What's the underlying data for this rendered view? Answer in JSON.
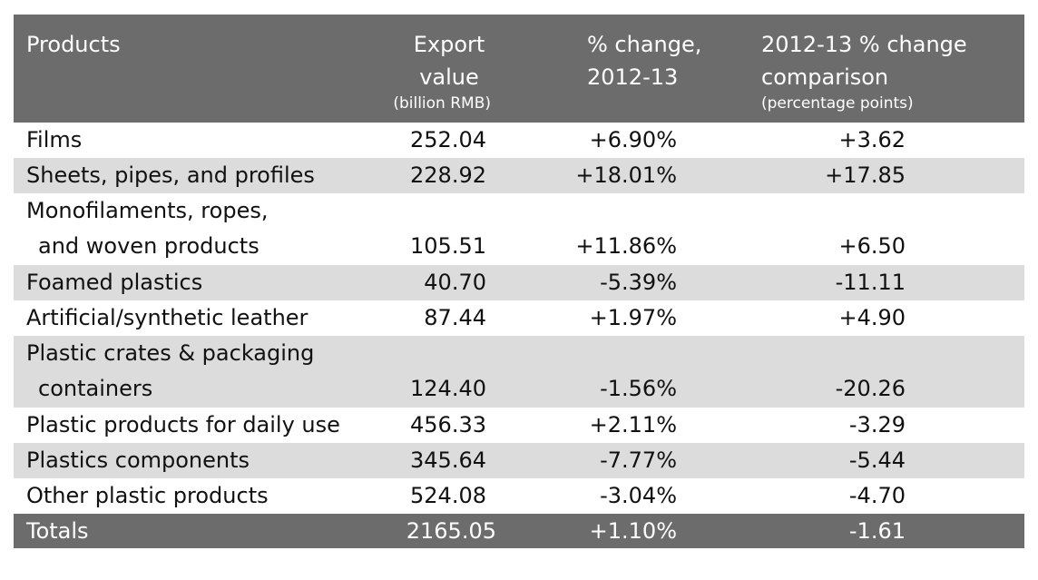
{
  "header": {
    "products": "Products",
    "export_line1": "Export",
    "export_line2": "value",
    "export_sub": "(billion RMB)",
    "pct_line1": "% change,",
    "pct_line2": "2012-13",
    "cmp_line1": "2012-13 % change",
    "cmp_line2": "comparison",
    "cmp_sub": "(percentage points)"
  },
  "rows": [
    {
      "product": "Films",
      "value": "252.04",
      "pct": "+6.90%",
      "cmp": "+3.62"
    },
    {
      "product": "Sheets, pipes, and profiles",
      "value": "228.92",
      "pct": "+18.01%",
      "cmp": "+17.85"
    },
    {
      "product": "Monofilaments, ropes,",
      "product2": "and woven products",
      "value": "105.51",
      "pct": "+11.86%",
      "cmp": "+6.50"
    },
    {
      "product": "Foamed plastics",
      "value": "40.70",
      "pct": "-5.39%",
      "cmp": "-11.11"
    },
    {
      "product": "Artificial/synthetic leather",
      "value": "87.44",
      "pct": "+1.97%",
      "cmp": "+4.90"
    },
    {
      "product": "Plastic crates & packaging",
      "product2": "containers",
      "value": "124.40",
      "pct": "-1.56%",
      "cmp": "-20.26"
    },
    {
      "product": "Plastic products for daily use",
      "value": "456.33",
      "pct": "+2.11%",
      "cmp": "-3.29"
    },
    {
      "product": "Plastics components",
      "value": "345.64",
      "pct": "-7.77%",
      "cmp": "-5.44"
    },
    {
      "product": "Other plastic products",
      "value": "524.08",
      "pct": "-3.04%",
      "cmp": "-4.70"
    }
  ],
  "totals": {
    "product": "Totals",
    "value": "2165.05",
    "pct": "+1.10%",
    "cmp": "-1.61"
  },
  "chart_data": {
    "type": "table",
    "columns": [
      "Products",
      "Export value (billion RMB)",
      "% change, 2012-13",
      "2012-13 % change comparison (percentage points)"
    ],
    "rows": [
      [
        "Films",
        252.04,
        6.9,
        3.62
      ],
      [
        "Sheets, pipes, and profiles",
        228.92,
        18.01,
        17.85
      ],
      [
        "Monofilaments, ropes, and woven products",
        105.51,
        11.86,
        6.5
      ],
      [
        "Foamed plastics",
        40.7,
        -5.39,
        -11.11
      ],
      [
        "Artificial/synthetic leather",
        87.44,
        1.97,
        4.9
      ],
      [
        "Plastic crates & packaging containers",
        124.4,
        -1.56,
        -20.26
      ],
      [
        "Plastic products for daily use",
        456.33,
        2.11,
        -3.29
      ],
      [
        "Plastics components",
        345.64,
        -7.77,
        -5.44
      ],
      [
        "Other plastic products",
        524.08,
        -3.04,
        -4.7
      ],
      [
        "Totals",
        2165.05,
        1.1,
        -1.61
      ]
    ],
    "colors": {
      "header_bg": "#6c6c6c",
      "alt_row_bg": "#dcdcdc",
      "header_text": "#ffffff"
    }
  }
}
